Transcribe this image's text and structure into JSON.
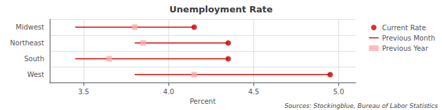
{
  "chart_data": {
    "type": "dot",
    "title": "Unemployment Rate",
    "x_label": "Percent",
    "annotations": [
      "Sources: Stockingblue, Bureau of Labor Statistics"
    ],
    "categories": [
      "Midwest",
      "Northeast",
      "South",
      "West"
    ],
    "series": [
      {
        "name": "Current Rate",
        "type": "scatter",
        "marker": "circle",
        "color": "#cc0000",
        "values": [
          4.15,
          4.35,
          4.35,
          4.95
        ]
      },
      {
        "name": "Previous Month",
        "type": "range",
        "line_style": "solid",
        "color": "#cc0000",
        "values": [
          [
            3.45,
            4.15
          ],
          [
            3.8,
            4.35
          ],
          [
            3.45,
            4.35
          ],
          [
            3.8,
            4.95
          ]
        ]
      },
      {
        "name": "Previous Year",
        "type": "scatter",
        "marker": "square",
        "color": "#ffaaaa",
        "values": [
          3.8,
          3.85,
          3.65,
          4.15
        ]
      }
    ],
    "xlim": [
      3.3,
      5.1
    ],
    "xticks": [
      3.5,
      {
        "value": 4.0,
        "label": "4.0"
      },
      4.5,
      {
        "value": 5.0,
        "label": "5.0"
      }
    ],
    "grid": true,
    "legend": "upper right"
  }
}
